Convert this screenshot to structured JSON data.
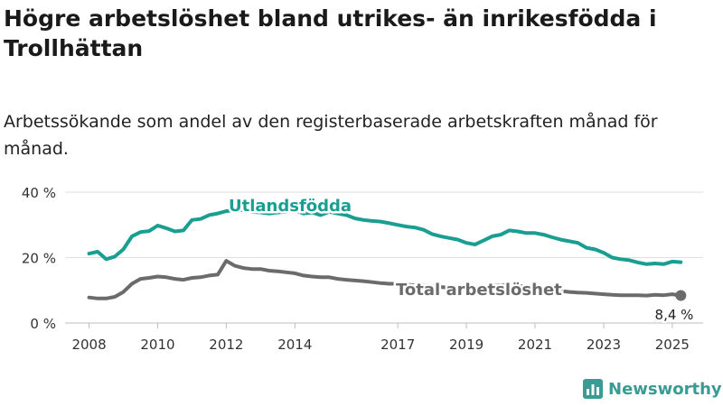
{
  "title": "Högre arbetslöshet bland utrikes- än inrikesfödda i Trollhättan",
  "subtitle": "Arbetssökande som andel av den registerbaserade arbetskraften månad för månad.",
  "brand": {
    "name": "Newsworthy",
    "icon": "bar-chart-logo-icon",
    "color": "#3a9a94"
  },
  "chart_data": {
    "type": "line",
    "xlim": [
      2007.3,
      2025.9
    ],
    "ylim": [
      0,
      40
    ],
    "yticks": [
      0,
      20,
      40
    ],
    "ytick_labels": [
      "0 %",
      "20 %",
      "40 %"
    ],
    "xticks": [
      2008,
      2010,
      2012,
      2014,
      2017,
      2019,
      2021,
      2023,
      2025
    ],
    "xtick_labels": [
      "2008",
      "2010",
      "2012",
      "2014",
      "2017",
      "2019",
      "2021",
      "2023",
      "2025"
    ],
    "grid": true,
    "series": [
      {
        "name": "Utlandsfödda",
        "color": "#1a9e91",
        "x": [
          2008.0,
          2008.25,
          2008.5,
          2008.75,
          2009.0,
          2009.25,
          2009.5,
          2009.75,
          2010.0,
          2010.25,
          2010.5,
          2010.75,
          2011.0,
          2011.25,
          2011.5,
          2011.75,
          2012.0,
          2012.25,
          2012.5,
          2012.75,
          2013.0,
          2013.25,
          2013.5,
          2013.75,
          2014.0,
          2014.25,
          2014.5,
          2014.75,
          2015.0,
          2015.25,
          2015.5,
          2015.75,
          2016.0,
          2016.25,
          2016.5,
          2016.75,
          2017.0,
          2017.25,
          2017.5,
          2017.75,
          2018.0,
          2018.25,
          2018.5,
          2018.75,
          2019.0,
          2019.25,
          2019.5,
          2019.75,
          2020.0,
          2020.25,
          2020.5,
          2020.75,
          2021.0,
          2021.25,
          2021.5,
          2021.75,
          2022.0,
          2022.25,
          2022.5,
          2022.75,
          2023.0,
          2023.25,
          2023.5,
          2023.75,
          2024.0,
          2024.25,
          2024.5,
          2024.75,
          2025.0,
          2025.25
        ],
        "values": [
          21.2,
          21.8,
          19.5,
          20.3,
          22.5,
          26.5,
          27.8,
          28.1,
          29.8,
          29.0,
          28.0,
          28.3,
          31.5,
          31.8,
          33.0,
          33.5,
          34.2,
          34.5,
          34.5,
          34.0,
          33.8,
          33.5,
          33.8,
          34.0,
          34.5,
          33.5,
          33.8,
          33.0,
          34.0,
          33.5,
          33.0,
          32.0,
          31.5,
          31.2,
          31.0,
          30.5,
          30.0,
          29.5,
          29.2,
          28.5,
          27.2,
          26.5,
          26.0,
          25.5,
          24.5,
          24.0,
          25.2,
          26.5,
          27.0,
          28.3,
          28.0,
          27.5,
          27.5,
          27.0,
          26.2,
          25.5,
          25.0,
          24.5,
          23.0,
          22.5,
          21.5,
          20.0,
          19.5,
          19.2,
          18.5,
          18.0,
          18.2,
          18.0,
          18.8,
          18.6
        ],
        "label": "Utlandsfödda"
      },
      {
        "name": "Total arbetslöshet",
        "color": "#6b6b6b",
        "x": [
          2008.0,
          2008.25,
          2008.5,
          2008.75,
          2009.0,
          2009.25,
          2009.5,
          2009.75,
          2010.0,
          2010.25,
          2010.5,
          2010.75,
          2011.0,
          2011.25,
          2011.5,
          2011.75,
          2012.0,
          2012.25,
          2012.5,
          2012.75,
          2013.0,
          2013.25,
          2013.5,
          2013.75,
          2014.0,
          2014.25,
          2014.5,
          2014.75,
          2015.0,
          2015.25,
          2015.5,
          2015.75,
          2016.0,
          2016.25,
          2016.5,
          2016.75,
          2017.0,
          2017.25,
          2017.5,
          2017.75,
          2018.0,
          2018.25,
          2018.5,
          2018.75,
          2019.0,
          2019.25,
          2019.5,
          2019.75,
          2020.0,
          2020.25,
          2020.5,
          2020.75,
          2021.0,
          2021.25,
          2021.5,
          2021.75,
          2022.0,
          2022.25,
          2022.5,
          2022.75,
          2023.0,
          2023.25,
          2023.5,
          2023.75,
          2024.0,
          2024.25,
          2024.5,
          2024.75,
          2025.0,
          2025.25
        ],
        "values": [
          7.8,
          7.5,
          7.5,
          8.0,
          9.5,
          12.0,
          13.5,
          13.8,
          14.2,
          14.0,
          13.5,
          13.2,
          13.8,
          14.0,
          14.5,
          14.8,
          19.0,
          17.5,
          16.8,
          16.5,
          16.5,
          16.0,
          15.8,
          15.5,
          15.2,
          14.5,
          14.2,
          14.0,
          14.0,
          13.5,
          13.2,
          13.0,
          12.8,
          12.5,
          12.2,
          12.0,
          12.0,
          11.8,
          11.5,
          11.5,
          11.2,
          11.0,
          10.8,
          10.6,
          10.5,
          10.8,
          11.0,
          11.5,
          11.5,
          11.8,
          11.5,
          11.0,
          11.0,
          10.5,
          10.0,
          9.8,
          9.5,
          9.3,
          9.2,
          9.0,
          8.8,
          8.6,
          8.5,
          8.5,
          8.5,
          8.4,
          8.6,
          8.5,
          8.8,
          8.4
        ],
        "label": "Total arbetslöshet",
        "end_label": "8,4 %"
      }
    ]
  }
}
